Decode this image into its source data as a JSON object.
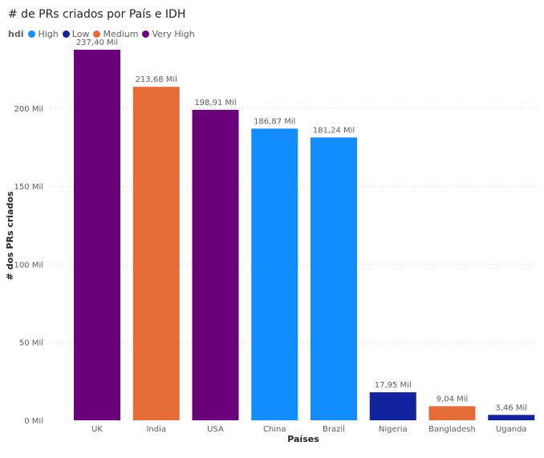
{
  "chart_data": {
    "type": "bar",
    "title": "# de PRs criados por País e IDH",
    "xlabel": "Países",
    "ylabel": "# dos PRs criados",
    "ylim": [
      0,
      240000
    ],
    "yticks": [
      0,
      50000,
      100000,
      150000,
      200000
    ],
    "ytick_labels": [
      "0 Mil",
      "50 Mil",
      "100 Mil",
      "150 Mil",
      "200 Mil"
    ],
    "legend": {
      "title": "hdi",
      "placement": "top-left",
      "entries": [
        {
          "name": "High",
          "color": "#118DFF"
        },
        {
          "name": "Low",
          "color": "#12239E"
        },
        {
          "name": "Medium",
          "color": "#E66C37"
        },
        {
          "name": "Very High",
          "color": "#6B007B"
        }
      ]
    },
    "grid": true,
    "categories": [
      "UK",
      "India",
      "USA",
      "China",
      "Brazil",
      "Nigeria",
      "Bangladesh",
      "Uganda"
    ],
    "values": [
      237400,
      213680,
      198910,
      186870,
      181240,
      17950,
      9040,
      3460
    ],
    "value_labels": [
      "237,40 Mil",
      "213,68 Mil",
      "198,91 Mil",
      "186,87 Mil",
      "181,24 Mil",
      "17,95 Mil",
      "9,04 Mil",
      "3,46 Mil"
    ],
    "hdi": [
      "Very High",
      "Medium",
      "Very High",
      "High",
      "High",
      "Low",
      "Medium",
      "Low"
    ]
  }
}
